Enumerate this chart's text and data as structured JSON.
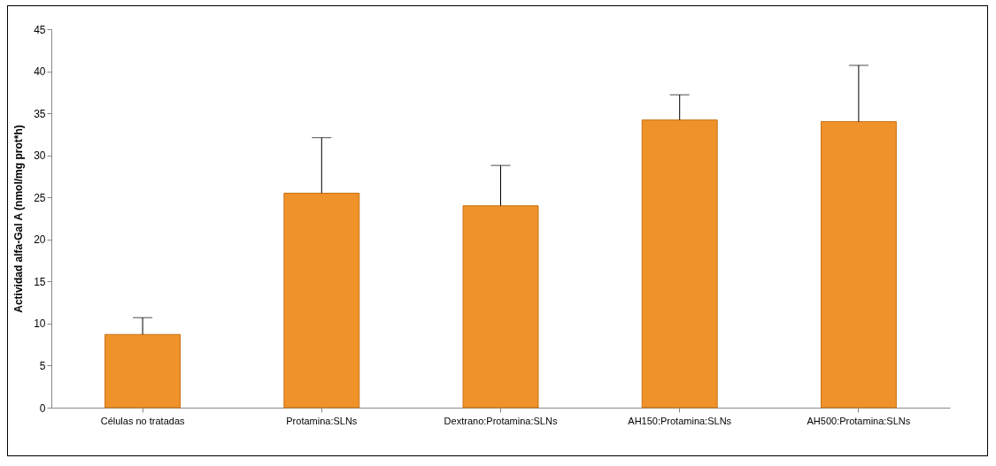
{
  "chart_data": {
    "type": "bar",
    "ylabel": "Actividad alfa-Gal A (nmol/mg prot*h)",
    "categories": [
      "Células no tratadas",
      "Protamina:SLNs",
      "Dextrano:Protamina:SLNs",
      "AH150:Protamina:SLNs",
      "AH500:Protamina:SLNs"
    ],
    "values": [
      8.7,
      25.5,
      24.0,
      34.2,
      34.0
    ],
    "errors": [
      [
        8.7,
        10.7
      ],
      [
        25.5,
        32.1
      ],
      [
        24.0,
        28.8
      ],
      [
        34.2,
        37.2
      ],
      [
        34.0,
        40.7
      ]
    ],
    "color": "#f0922a",
    "ylim": [
      0,
      45
    ],
    "yticks": [
      0,
      5,
      10,
      15,
      20,
      25,
      30,
      35,
      40,
      45
    ],
    "grid": false
  }
}
